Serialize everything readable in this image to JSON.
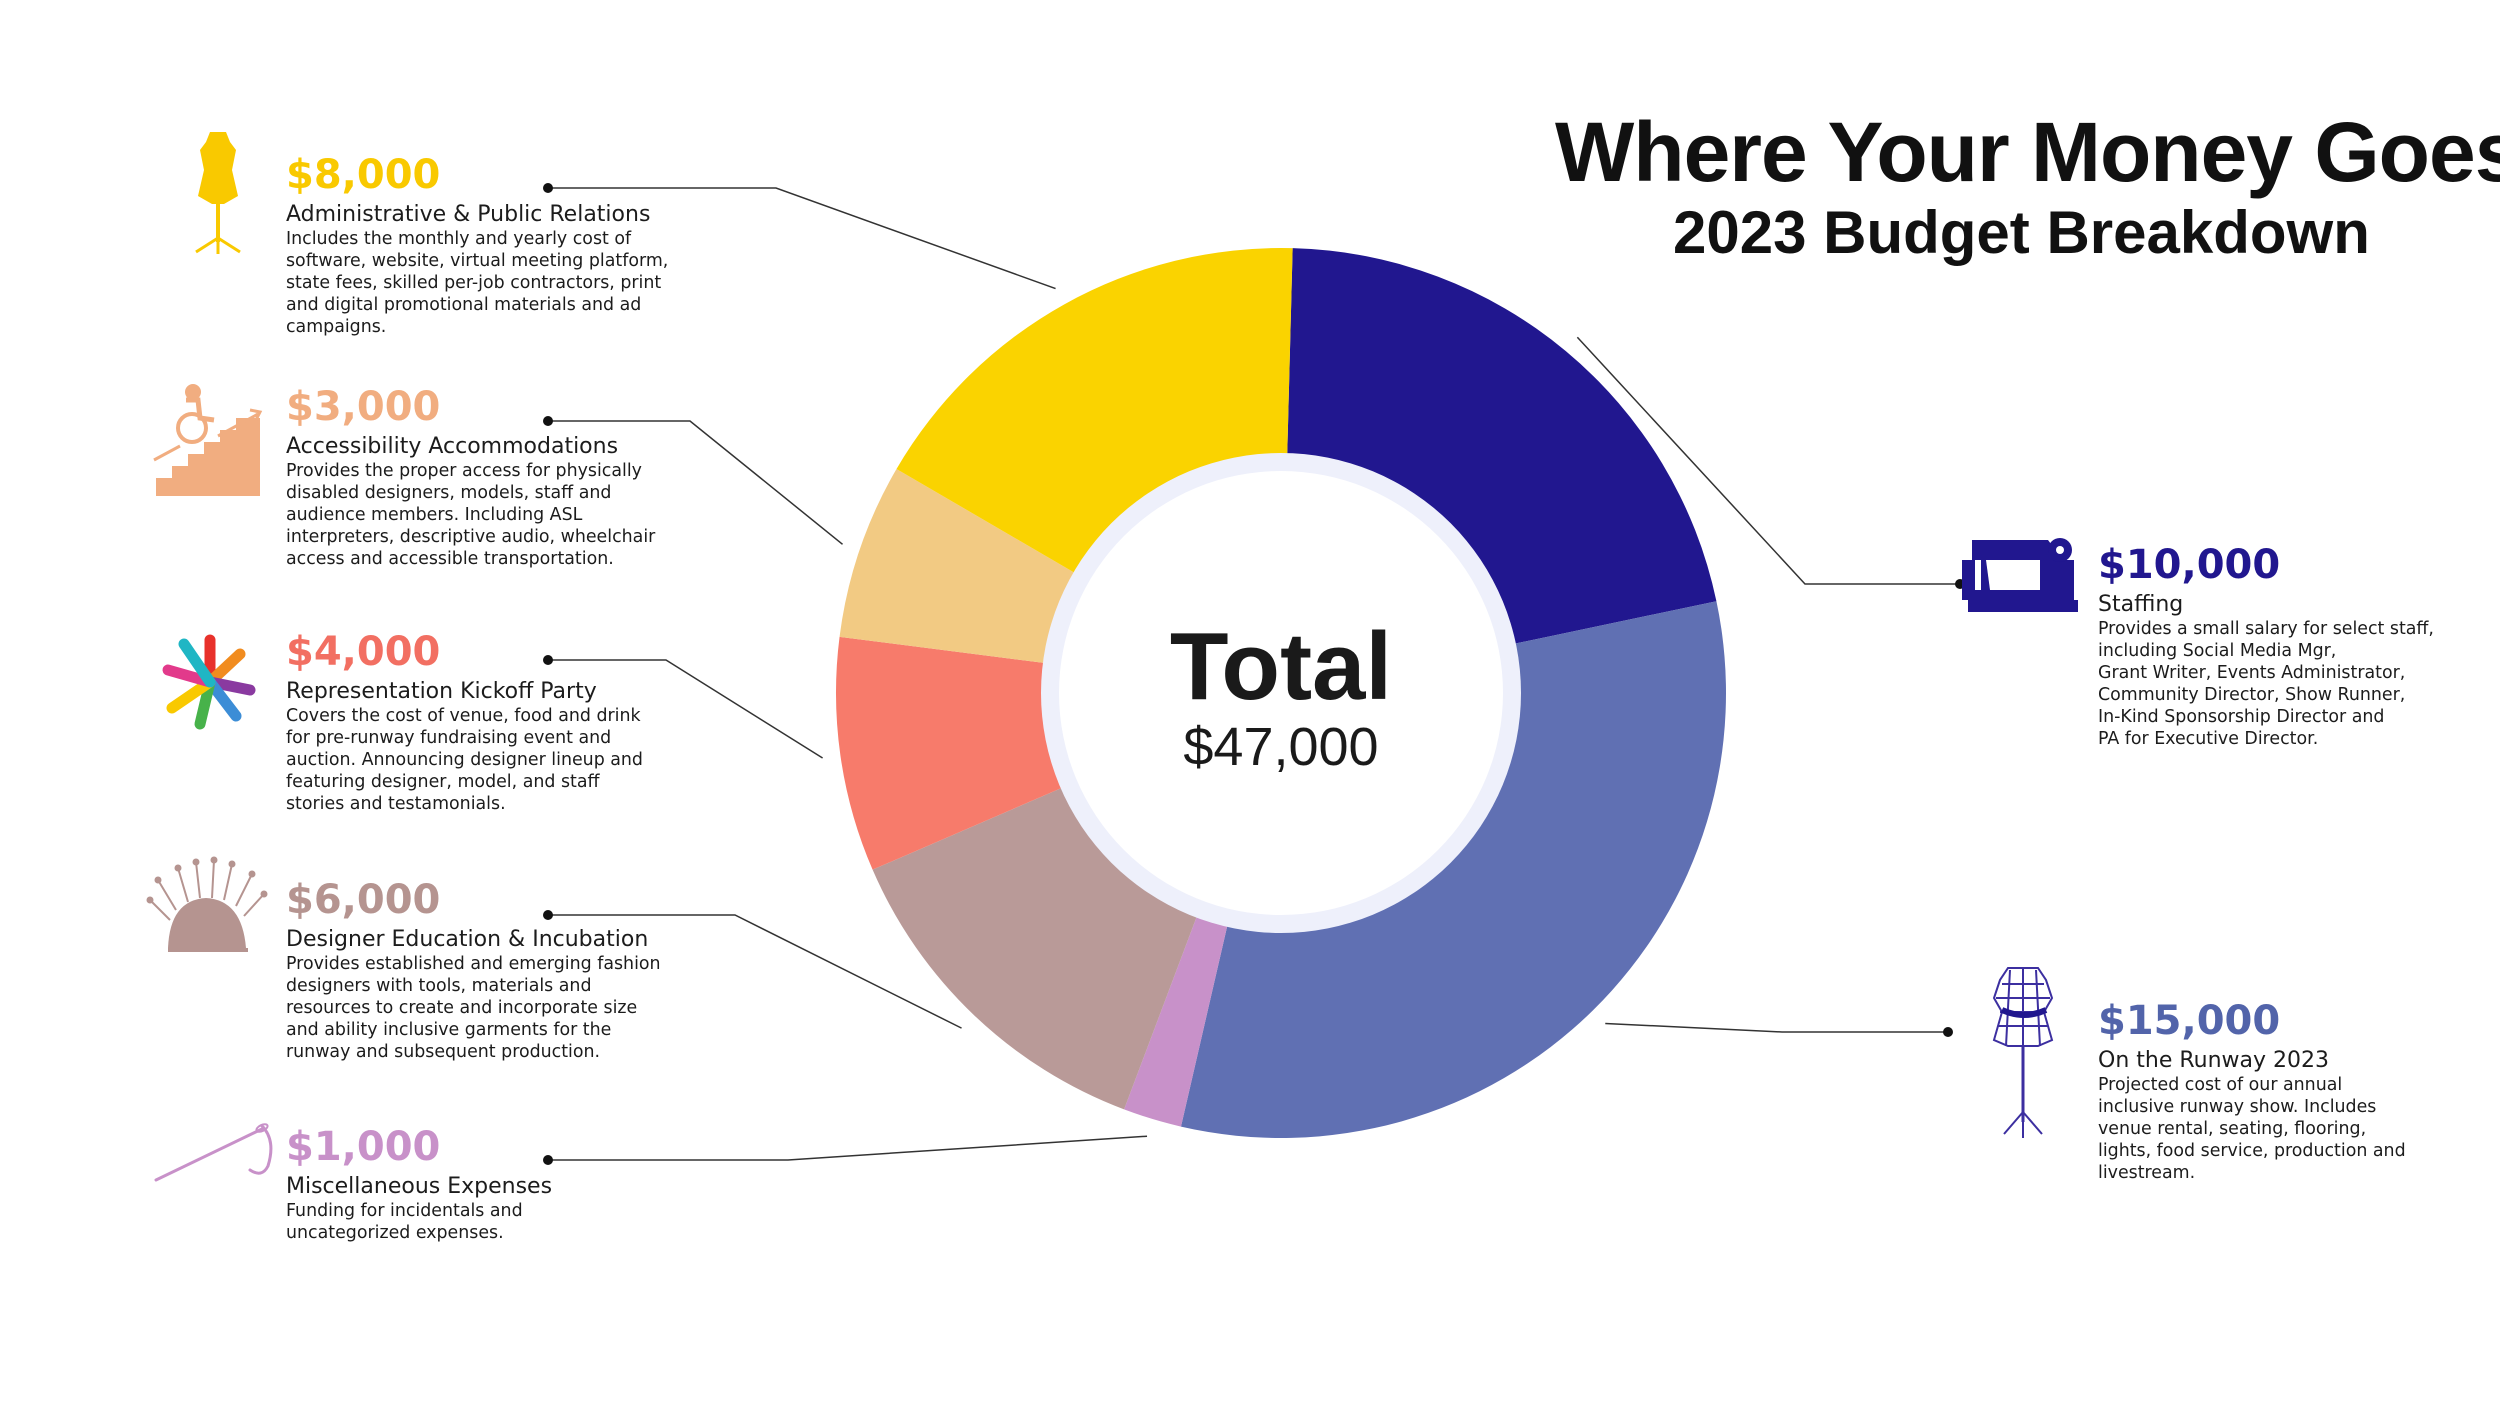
{
  "header": {
    "title": "Where Your Money Goes",
    "subtitle": "2023 Budget Breakdown"
  },
  "total": {
    "label": "Total",
    "value": "$47,000"
  },
  "chart_data": {
    "type": "pie",
    "title": "Where Your Money Goes",
    "subtitle": "2023 Budget Breakdown",
    "total": 47000,
    "series": [
      {
        "name": "Staffing",
        "value": 10000,
        "label": "$10,000",
        "color": "#21178f",
        "icon": "sewing-machine-icon",
        "description": "Provides a small salary for select staff,\nincluding Social Media Mgr,\nGrant Writer, Events Administrator,\nCommunity Director, Show Runner,\nIn-Kind Sponsorship Director and\nPA for Executive Director."
      },
      {
        "name": "On the Runway 2023",
        "value": 15000,
        "label": "$15,000",
        "color": "#6070b3",
        "icon": "dress-form-icon",
        "description": "Projected cost of our annual\ninclusive runway show. Includes\nvenue rental, seating, flooring,\nlights, food service, production and\nlivestream."
      },
      {
        "name": "Miscellaneous Expenses",
        "value": 1000,
        "label": "$1,000",
        "color": "#c891c9",
        "icon": "needle-thread-icon",
        "description": "Funding for incidentals and\nuncategorized expenses."
      },
      {
        "name": "Designer Education & Incubation",
        "value": 6000,
        "label": "$6,000",
        "color": "#b99a98",
        "icon": "pincushion-icon",
        "description": "Provides established and emerging fashion\ndesigners with tools, materials and\nresources to create and incorporate size\nand ability inclusive garments for the\nrunway and subsequent production."
      },
      {
        "name": "Representation Kickoff Party",
        "value": 4000,
        "label": "$4,000",
        "color": "#f77b6b",
        "icon": "raised-hands-circle-icon",
        "description": "Covers the cost of venue, food and drink\nfor pre-runway fundraising event and\nauction. Announcing designer lineup and\nfeaturing designer, model, and staff\nstories and testamonials."
      },
      {
        "name": "Accessibility Accommodations",
        "value": 3000,
        "label": "$3,000",
        "color": "#f2ca83",
        "icon": "wheelchair-ramp-icon",
        "description": "Provides the proper access for physically\ndisabled designers, models, staff and\naudience members. Including ASL\ninterpreters, descriptive audio, wheelchair\naccess and accessible transportation."
      },
      {
        "name": "Administrative & Public Relations",
        "value": 8000,
        "label": "$8,000",
        "color": "#fad300",
        "icon": "mannequin-icon",
        "description": "Includes the monthly and yearly cost of\nsoftware, website, virtual meeting platform,\nstate fees, skilled per-job contractors, print\nand digital promotional materials and ad\ncampaigns."
      }
    ],
    "label_colors": {
      "Staffing": "#21178f",
      "On the Runway 2023": "#5264aa",
      "Miscellaneous Expenses": "#c891c9",
      "Designer Education & Incubation": "#b59490",
      "Representation Kickoff Party": "#f26f62",
      "Accessibility Accommodations": "#f1ad80",
      "Administrative & Public Relations": "#f9c900"
    },
    "legend": "labels-around-chart"
  }
}
